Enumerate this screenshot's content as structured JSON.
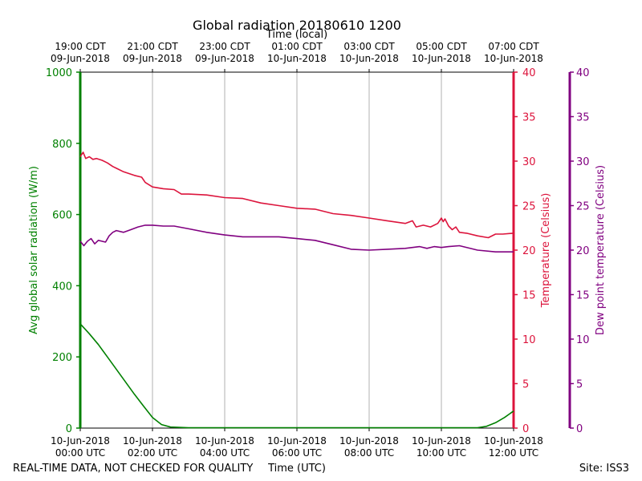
{
  "chart_data": {
    "type": "line",
    "title": "Global radiation 20180610 1200",
    "top_axis_label": "Time (local)",
    "xlabel": "Time (UTC)",
    "footer_left": "REAL-TIME DATA, NOT CHECKED FOR QUALITY",
    "footer_right": "Site: ISS3",
    "x_range_hours_utc": [
      0,
      12
    ],
    "bottom_ticks": [
      {
        "hour": 0,
        "line1": "10-Jun-2018",
        "line2": "00:00 UTC"
      },
      {
        "hour": 2,
        "line1": "10-Jun-2018",
        "line2": "02:00 UTC"
      },
      {
        "hour": 4,
        "line1": "10-Jun-2018",
        "line2": "04:00 UTC"
      },
      {
        "hour": 6,
        "line1": "10-Jun-2018",
        "line2": "06:00 UTC"
      },
      {
        "hour": 8,
        "line1": "10-Jun-2018",
        "line2": "08:00 UTC"
      },
      {
        "hour": 10,
        "line1": "10-Jun-2018",
        "line2": "10:00 UTC"
      },
      {
        "hour": 12,
        "line1": "10-Jun-2018",
        "line2": "12:00 UTC"
      }
    ],
    "top_ticks": [
      {
        "hour": 0,
        "line1": "19:00 CDT",
        "line2": "09-Jun-2018"
      },
      {
        "hour": 2,
        "line1": "21:00 CDT",
        "line2": "09-Jun-2018"
      },
      {
        "hour": 4,
        "line1": "23:00 CDT",
        "line2": "09-Jun-2018"
      },
      {
        "hour": 6,
        "line1": "01:00 CDT",
        "line2": "10-Jun-2018"
      },
      {
        "hour": 8,
        "line1": "03:00 CDT",
        "line2": "10-Jun-2018"
      },
      {
        "hour": 10,
        "line1": "05:00 CDT",
        "line2": "10-Jun-2018"
      },
      {
        "hour": 12,
        "line1": "07:00 CDT",
        "line2": "10-Jun-2018"
      }
    ],
    "vertical_gridlines_hours": [
      2,
      4,
      6,
      8,
      10
    ],
    "y_axes": {
      "radiation": {
        "label": "Avg global solar radiation (W/m)",
        "ylim": [
          0,
          1000
        ],
        "ticks": [
          0,
          200,
          400,
          600,
          800,
          1000
        ],
        "color": "#008000"
      },
      "temperature": {
        "label": "Temperature (Celsius)",
        "ylim": [
          0,
          40
        ],
        "ticks": [
          0,
          5,
          10,
          15,
          20,
          25,
          30,
          35,
          40
        ],
        "color": "#dc143c"
      },
      "dewpoint": {
        "label": "Dew point temperature (Celsius)",
        "ylim": [
          0,
          40
        ],
        "ticks": [
          0,
          5,
          10,
          15,
          20,
          25,
          30,
          35,
          40
        ],
        "color": "#800080"
      }
    },
    "series": [
      {
        "name": "Avg global solar radiation",
        "axis": "radiation",
        "color": "#008000",
        "x": [
          0,
          0.25,
          0.5,
          0.75,
          1.0,
          1.25,
          1.5,
          1.75,
          2.0,
          2.25,
          2.5,
          3,
          4,
          5,
          6,
          7,
          8,
          9,
          10,
          11,
          11.25,
          11.5,
          11.75,
          12.0
        ],
        "values": [
          293,
          265,
          235,
          200,
          165,
          130,
          95,
          62,
          30,
          10,
          3,
          1,
          1,
          1,
          1,
          1,
          1,
          1,
          1,
          1,
          5,
          15,
          30,
          48
        ]
      },
      {
        "name": "Temperature",
        "axis": "temperature",
        "color": "#dc143c",
        "x": [
          0,
          0.08,
          0.15,
          0.25,
          0.35,
          0.45,
          0.6,
          0.75,
          0.9,
          1.0,
          1.2,
          1.5,
          1.7,
          1.8,
          2.0,
          2.3,
          2.6,
          2.8,
          3.0,
          3.5,
          4.0,
          4.5,
          5.0,
          5.5,
          6.0,
          6.5,
          7.0,
          7.5,
          8.0,
          8.5,
          9.0,
          9.2,
          9.3,
          9.5,
          9.7,
          9.9,
          10.0,
          10.05,
          10.1,
          10.2,
          10.3,
          10.4,
          10.5,
          10.7,
          11.0,
          11.3,
          11.5,
          11.7,
          12.0
        ],
        "values": [
          30.5,
          31,
          30.3,
          30.5,
          30.2,
          30.3,
          30.1,
          29.8,
          29.4,
          29.2,
          28.8,
          28.4,
          28.2,
          27.6,
          27.1,
          26.9,
          26.8,
          26.3,
          26.3,
          26.2,
          25.9,
          25.8,
          25.3,
          25.0,
          24.7,
          24.6,
          24.1,
          23.9,
          23.6,
          23.3,
          23.0,
          23.3,
          22.6,
          22.8,
          22.6,
          23.0,
          23.6,
          23.2,
          23.5,
          22.7,
          22.3,
          22.6,
          22.0,
          21.9,
          21.6,
          21.4,
          21.8,
          21.8,
          21.9
        ]
      },
      {
        "name": "Dew point temperature",
        "axis": "dewpoint",
        "color": "#800080",
        "x": [
          0,
          0.1,
          0.2,
          0.3,
          0.4,
          0.5,
          0.6,
          0.7,
          0.8,
          0.9,
          1.0,
          1.2,
          1.4,
          1.6,
          1.8,
          2.0,
          2.3,
          2.6,
          3.0,
          3.5,
          4.0,
          4.5,
          5.0,
          5.5,
          6.0,
          6.5,
          7.0,
          7.5,
          8.0,
          8.5,
          9.0,
          9.2,
          9.4,
          9.6,
          9.8,
          10.0,
          10.2,
          10.5,
          11.0,
          11.5,
          12.0
        ],
        "values": [
          21.0,
          20.5,
          21.0,
          21.3,
          20.7,
          21.1,
          21.0,
          20.9,
          21.6,
          22.0,
          22.2,
          22.0,
          22.3,
          22.6,
          22.8,
          22.8,
          22.7,
          22.7,
          22.4,
          22.0,
          21.7,
          21.5,
          21.5,
          21.5,
          21.3,
          21.1,
          20.6,
          20.1,
          20.0,
          20.1,
          20.2,
          20.3,
          20.4,
          20.2,
          20.4,
          20.3,
          20.4,
          20.5,
          20.0,
          19.8,
          19.8
        ]
      }
    ]
  }
}
